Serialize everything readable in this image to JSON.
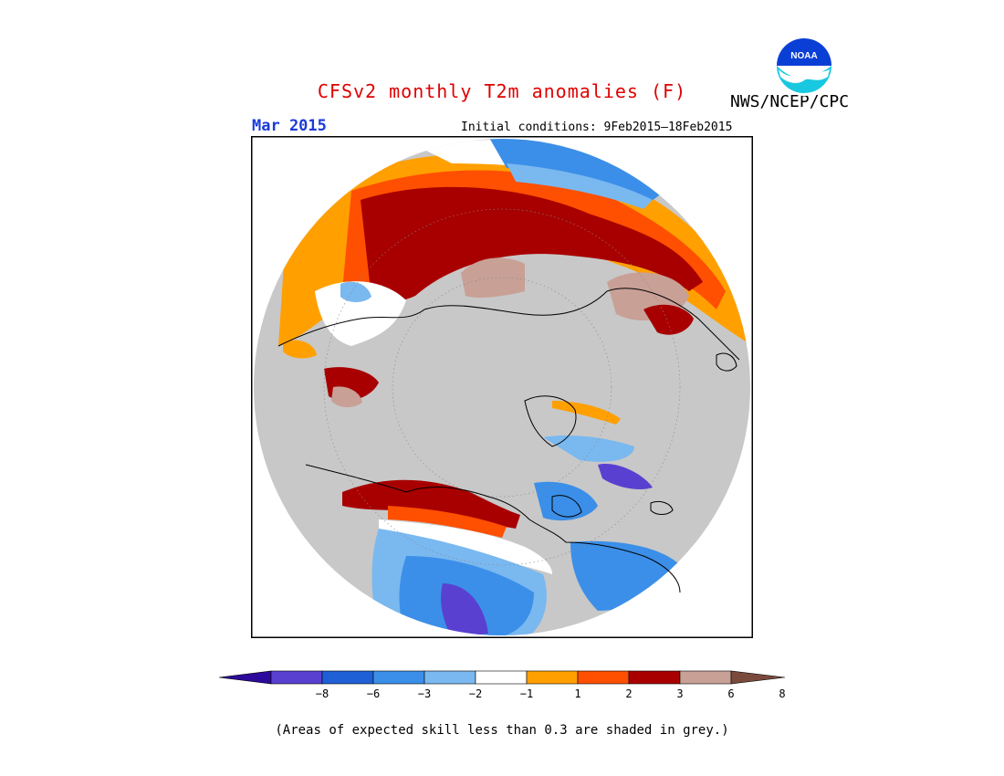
{
  "header": {
    "title": "CFSv2 monthly T2m anomalies (F)",
    "agency": "NWS/NCEP/CPC",
    "month": "Mar 2015",
    "initial_conditions": "Initial conditions: 9Feb2015–18Feb2015",
    "logo_text": "NOAA"
  },
  "legend": {
    "tick_labels": [
      "−8",
      "−6",
      "−3",
      "−2",
      "−1",
      "1",
      "2",
      "3",
      "6",
      "8"
    ],
    "colors": [
      "#2d0a9c",
      "#5a40d0",
      "#1f5fd6",
      "#3b8fe8",
      "#7ab8f0",
      "#ffffff",
      "#ffa000",
      "#ff4f00",
      "#a80000",
      "#c8a096",
      "#7a4a3c"
    ]
  },
  "footnote": "(Areas of expected skill less than 0.3 are shaded in grey.)",
  "map": {
    "projection": "north polar stereographic",
    "skill_mask_color": "#c8c8c8",
    "region_colors": {
      "warm_strong": "#a80000",
      "warm_mid": "#ff4f00",
      "warm_weak": "#ffa000",
      "warm_extreme": "#c8a096",
      "cold_weak": "#7ab8f0",
      "cold_mid": "#3b8fe8",
      "cold_strong": "#1f5fd6",
      "cold_extreme": "#5a40d0"
    }
  }
}
